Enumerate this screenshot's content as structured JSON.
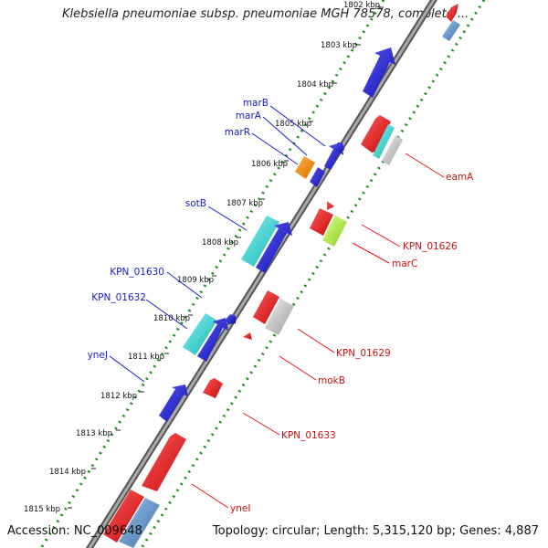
{
  "title": "Klebsiella pneumoniae subsp. pneumoniae MGH 78578, complete ...",
  "footer": {
    "accession": "Accession: NC_009648",
    "topology": "Topology: circular; Length: 5,315,120 bp; Genes: 4,887"
  },
  "ticks": [
    "1802 kbp",
    "1803 kbp",
    "1804 kbp",
    "1805 kbp",
    "1806 kbp",
    "1807 kbp",
    "1808 kbp",
    "1809 kbp",
    "1810 kbp",
    "1811 kbp",
    "1812 kbp",
    "1813 kbp",
    "1814 kbp",
    "1815 kbp"
  ],
  "colors": {
    "backbone": "#888888",
    "blue_gene": "#1a1ad0",
    "red_gene": "#e8141a",
    "orange_gene": "#f08c00",
    "cyan_gene": "#1fd3d3",
    "lightgreen_gene": "#aaee33",
    "grey_gene": "#b8b8b8",
    "steelblue_gene": "#4a86c0",
    "dotted_track": "#1c8a1c"
  },
  "labels_blue": [
    "marB",
    "marA",
    "marR",
    "sotB",
    "KPN_01630",
    "KPN_01632",
    "yneJ"
  ],
  "labels_red": [
    "eamA",
    "KPN_01626",
    "marC",
    "KPN_01629",
    "mokB",
    "KPN_01633",
    "yneI"
  ]
}
